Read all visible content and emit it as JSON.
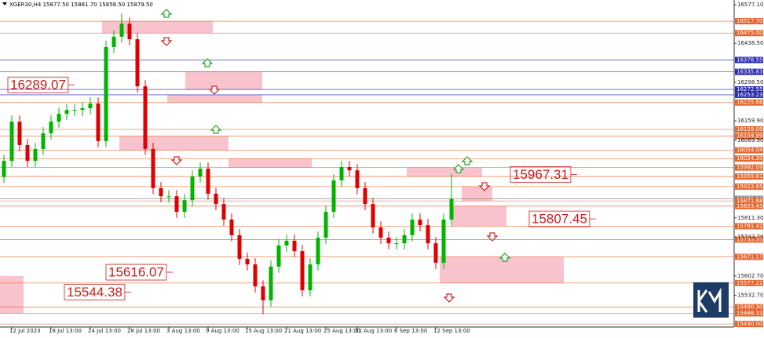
{
  "chart_data": {
    "type": "candlestick",
    "header": "XGER30,H4 15877.50 15881.70 15858.50 15879.50",
    "categories": [
      null,
      "12 Jul 2023",
      null,
      null,
      null,
      null,
      "18 Jul 13:00",
      null,
      null,
      null,
      null,
      "24 Jul 13:00",
      null,
      null,
      null,
      null,
      "28 Jul 13:00",
      null,
      null,
      null,
      null,
      "3 Aug 13:00",
      null,
      null,
      null,
      null,
      "9 Aug 13:00",
      null,
      null,
      null,
      null,
      "15 Aug 13:00",
      null,
      null,
      null,
      null,
      "21 Aug 13:00",
      null,
      null,
      null,
      null,
      "25 Aug 13:00",
      null,
      null,
      null,
      "31 Aug 13:00",
      null,
      null,
      null,
      null,
      "6 Sep 13:00",
      null,
      null,
      null,
      null,
      "12 Sep 13:00",
      null,
      null
    ],
    "open": [
      15958,
      16016,
      16157,
      16073,
      16016,
      16059,
      16115,
      16157,
      16185,
      16199,
      16199,
      16205,
      16222,
      16087,
      16425,
      16462,
      16509,
      16453,
      16284,
      16059,
      15918,
      15889,
      15889,
      15833,
      15875,
      15960,
      15988,
      15898,
      15861,
      15805,
      15749,
      15664,
      15644,
      15565,
      15515,
      15636,
      15712,
      15729,
      15692,
      15551,
      15644,
      15740,
      15833,
      15946,
      15994,
      15982,
      15918,
      15861,
      15777,
      15740,
      15720,
      15720,
      15749,
      15805,
      15785,
      15720,
      15650,
      15805
    ],
    "high": [
      16038,
      16179,
      16179,
      16095,
      16081,
      16137,
      16179,
      16207,
      16221,
      16221,
      16227,
      16244,
      16244,
      16447,
      16484,
      16545,
      16531,
      16475,
      16306,
      16081,
      15940,
      15911,
      15911,
      15897,
      15982,
      16010,
      16010,
      15920,
      15883,
      15827,
      15771,
      15686,
      15666,
      15587,
      15658,
      15734,
      15751,
      15751,
      15714,
      15666,
      15762,
      15855,
      15968,
      16016,
      16016,
      16004,
      15940,
      15883,
      15799,
      15762,
      15742,
      15771,
      15827,
      15827,
      15807,
      15742,
      15827,
      15968
    ],
    "low": [
      15936,
      15994,
      16051,
      15994,
      15994,
      16037,
      16093,
      16135,
      16163,
      16177,
      16177,
      16183,
      16065,
      16065,
      16403,
      16440,
      16431,
      16262,
      16037,
      15896,
      15867,
      15867,
      15811,
      15811,
      15853,
      15938,
      15876,
      15839,
      15783,
      15727,
      15642,
      15622,
      15543,
      15465,
      15493,
      15614,
      15690,
      15670,
      15529,
      15529,
      15622,
      15718,
      15811,
      15924,
      15960,
      15896,
      15839,
      15755,
      15718,
      15698,
      15698,
      15698,
      15727,
      15763,
      15698,
      15628,
      15628,
      15783
    ],
    "close": [
      16016,
      16157,
      16073,
      16016,
      16059,
      16115,
      16157,
      16185,
      16199,
      16199,
      16205,
      16222,
      16087,
      16425,
      16462,
      16509,
      16453,
      16284,
      16059,
      15918,
      15889,
      15889,
      15833,
      15875,
      15960,
      15988,
      15898,
      15861,
      15805,
      15749,
      15664,
      15644,
      15565,
      15515,
      15636,
      15712,
      15729,
      15692,
      15551,
      15644,
      15740,
      15833,
      15946,
      15994,
      15982,
      15918,
      15861,
      15777,
      15740,
      15720,
      15720,
      15749,
      15805,
      15785,
      15720,
      15650,
      15805,
      15879.5
    ],
    "up_color": "#00b400",
    "down_color": "#e00000",
    "ylim": [
      15419,
      16594
    ],
    "yticks": [
      {
        "value": 16577.1,
        "label": "16577.10"
      },
      {
        "value": 16438.5,
        "label": "16438.50"
      },
      {
        "value": 16298.5,
        "label": "16298.50"
      },
      {
        "value": 16159.9,
        "label": "16159.90"
      },
      {
        "value": 16089.9,
        "label": "16089.90"
      },
      {
        "value": 15811.3,
        "label": "15811.30"
      },
      {
        "value": 15742.7,
        "label": "15742.70"
      },
      {
        "value": 15602.7,
        "label": "15602.70"
      },
      {
        "value": 15532.7,
        "label": "15532.70"
      }
    ],
    "levels": [
      {
        "value": 16517.7,
        "label": "16517.70",
        "color": "#e8642c"
      },
      {
        "value": 16475,
        "label": "16475.00",
        "color": "#e8642c"
      },
      {
        "value": 16378.55,
        "label": "16378.55",
        "color": "#2828b8"
      },
      {
        "value": 16335.83,
        "label": "16335.83",
        "color": "#2828b8"
      },
      {
        "value": 16272.55,
        "label": "16272.55",
        "color": "#2828b8"
      },
      {
        "value": 16253.23,
        "label": "16253.23",
        "color": "#2828b8"
      },
      {
        "value": 16225.66,
        "label": "16225.66",
        "color": "#e8642c"
      },
      {
        "value": 16129.09,
        "label": "16129.09",
        "color": "#e8642c"
      },
      {
        "value": 16104.89,
        "label": "16104.89",
        "color": "#e8642c"
      },
      {
        "value": 16054.04,
        "label": "16054.04",
        "color": "#e8642c"
      },
      {
        "value": 16024.2,
        "label": "16024.20",
        "color": "#e8642c"
      },
      {
        "value": 15992.09,
        "label": "15992.09",
        "color": "#e8642c"
      },
      {
        "value": 15959.81,
        "label": "15959.81",
        "color": "#e8642c"
      },
      {
        "value": 15923.65,
        "label": "15923.65",
        "color": "#e8642c"
      },
      {
        "value": 15879.5,
        "label": "15879.50",
        "color": "#808080"
      },
      {
        "value": 15871.88,
        "label": "15871.88",
        "color": "#e8642c"
      },
      {
        "value": 15853.45,
        "label": "15853.45",
        "color": "#e8642c"
      },
      {
        "value": 15781.42,
        "label": "15781.42",
        "color": "#e8642c"
      },
      {
        "value": 15733.35,
        "label": "15733.35",
        "color": "#e8642c"
      },
      {
        "value": 15671.17,
        "label": "15671.17",
        "color": "#e8642c"
      },
      {
        "value": 15577.22,
        "label": "15577.22",
        "color": "#e8642c"
      },
      {
        "value": 15490.3,
        "label": "15490.30",
        "color": "#e8642c"
      },
      {
        "value": 15468.33,
        "label": "15468.33",
        "color": "#e8642c"
      },
      {
        "value": 15430,
        "label": "15430.00",
        "color": "#e8642c"
      }
    ],
    "zones": [
      {
        "top": 16517.7,
        "bottom": 16475
      },
      {
        "top": 16335.83,
        "bottom": 16272.55
      },
      {
        "top": 16253.23,
        "bottom": 16225.66
      },
      {
        "top": 16104.89,
        "bottom": 16054.04
      },
      {
        "top": 16024.2,
        "bottom": 15992.09
      },
      {
        "top": 15992.09,
        "bottom": 15959.81
      },
      {
        "top": 15923.65,
        "bottom": 15871.88
      },
      {
        "top": 15853.45,
        "bottom": 15781.42
      },
      {
        "top": 15671.17,
        "bottom": 15577.22
      },
      {
        "top": 15602.7,
        "bottom": 15468.33
      }
    ],
    "zone_color": "#f7b8c4",
    "annotations": [
      16289.07,
      15967.31,
      15807.45,
      15616.07,
      15544.38
    ]
  }
}
